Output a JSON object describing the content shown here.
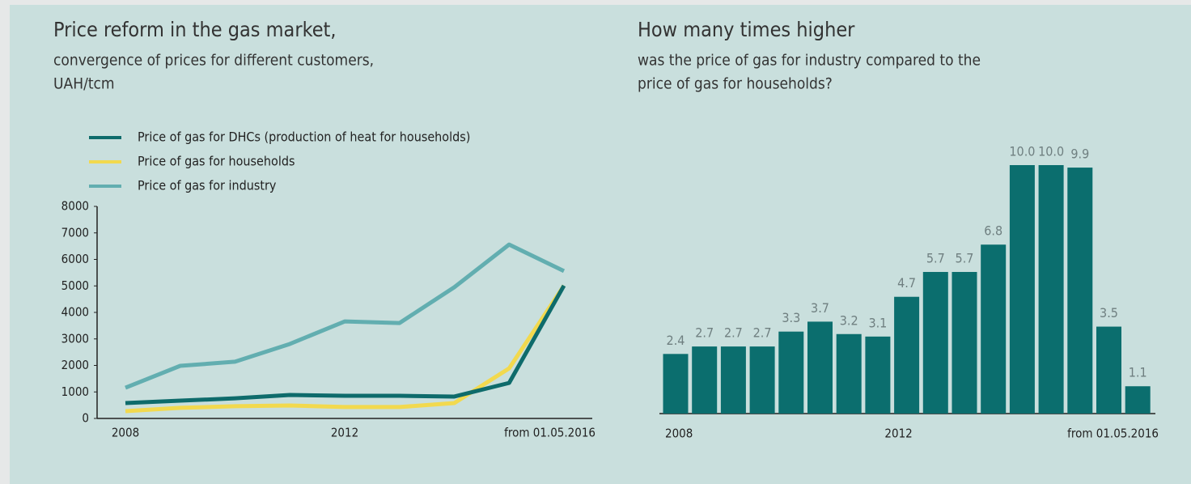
{
  "chart_data": [
    {
      "type": "line",
      "title": "Price reform in the gas market,",
      "subtitle": [
        "convergence of prices for different customers,",
        "UAH/tcm"
      ],
      "categories": [
        "2008",
        null,
        null,
        null,
        "2012",
        null,
        null,
        null,
        "from 01.05.2016"
      ],
      "series": [
        {
          "name": "Price of gas for DHCs (production of heat for households)",
          "color": "#0e6b6b",
          "values": [
            580,
            670,
            760,
            885,
            855,
            855,
            825,
            1340,
            5010
          ]
        },
        {
          "name": "Price of gas for households",
          "color": "#f2d94e",
          "values": [
            275,
            400,
            460,
            490,
            430,
            430,
            580,
            1890,
            5010
          ]
        },
        {
          "name": "Price of gas for industry",
          "color": "#62aeb0",
          "values": [
            1160,
            1985,
            2140,
            2810,
            3660,
            3600,
            4950,
            6560,
            5560
          ]
        }
      ],
      "ylim": [
        0,
        8000
      ],
      "yticks": [
        0,
        1000,
        2000,
        3000,
        4000,
        5000,
        6000,
        7000,
        8000
      ]
    },
    {
      "type": "bar",
      "title": "How many times higher",
      "subtitle": [
        "was the price of gas for industry compared to the",
        "price of gas for households?"
      ],
      "categories": [
        "2008",
        null,
        null,
        null,
        null,
        null,
        null,
        null,
        "2012",
        null,
        null,
        null,
        null,
        null,
        null,
        null,
        "from 01.05.2016"
      ],
      "values": [
        2.4,
        2.7,
        2.7,
        2.7,
        3.3,
        3.7,
        3.2,
        3.1,
        4.7,
        5.7,
        5.7,
        6.8,
        10,
        10,
        9.9,
        3.5,
        1.1
      ],
      "value_labels": [
        "2.4",
        "2.7",
        "2.7",
        "2.7",
        "3.3",
        "3.7",
        "3.2",
        "3.1",
        "4.7",
        "5.7",
        "5.7",
        "6.8",
        "10.0",
        "10.0",
        "9.9",
        "3.5",
        "1.1"
      ],
      "color": "#0b6e6e"
    }
  ]
}
